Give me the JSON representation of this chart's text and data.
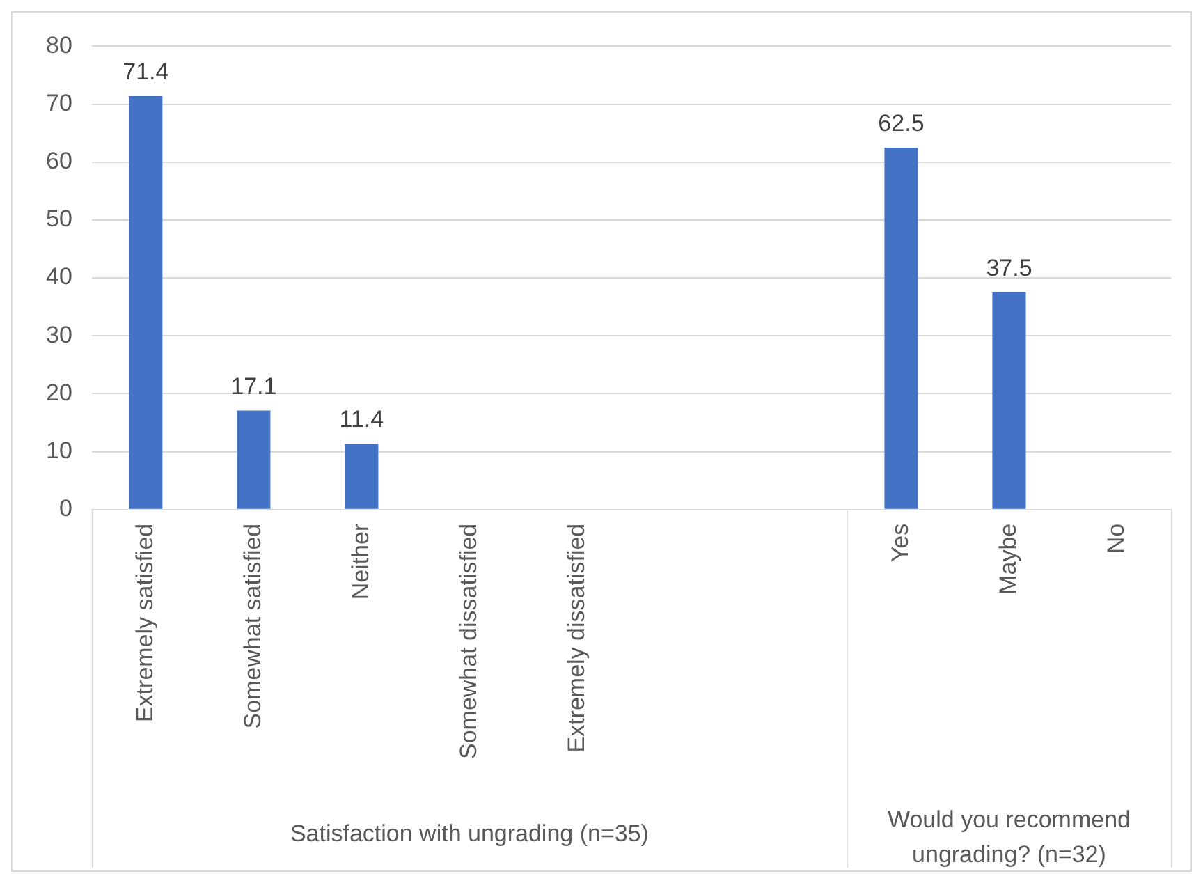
{
  "chart_data": {
    "type": "bar",
    "categories": [
      "Extremely satisfied",
      "Somewhat satisfied",
      "Neither",
      "Somewhat dissatisfied",
      "Extremely dissatisfied",
      null,
      null,
      "Yes",
      "Maybe",
      "No"
    ],
    "values": [
      71.4,
      17.1,
      11.4,
      0,
      0,
      null,
      null,
      62.5,
      37.5,
      0
    ],
    "value_labels": [
      "71.4",
      "17.1",
      "11.4",
      null,
      null,
      null,
      null,
      "62.5",
      "37.5",
      null
    ],
    "color": "#4472c4",
    "ylim": [
      0,
      80
    ],
    "yticks": [
      0,
      10,
      20,
      30,
      40,
      50,
      60,
      70,
      80
    ],
    "grid": "y",
    "annotations": [
      "Satisfaction with ungrading (n=35)",
      "Would you recommend ungrading? (n=32)"
    ]
  }
}
